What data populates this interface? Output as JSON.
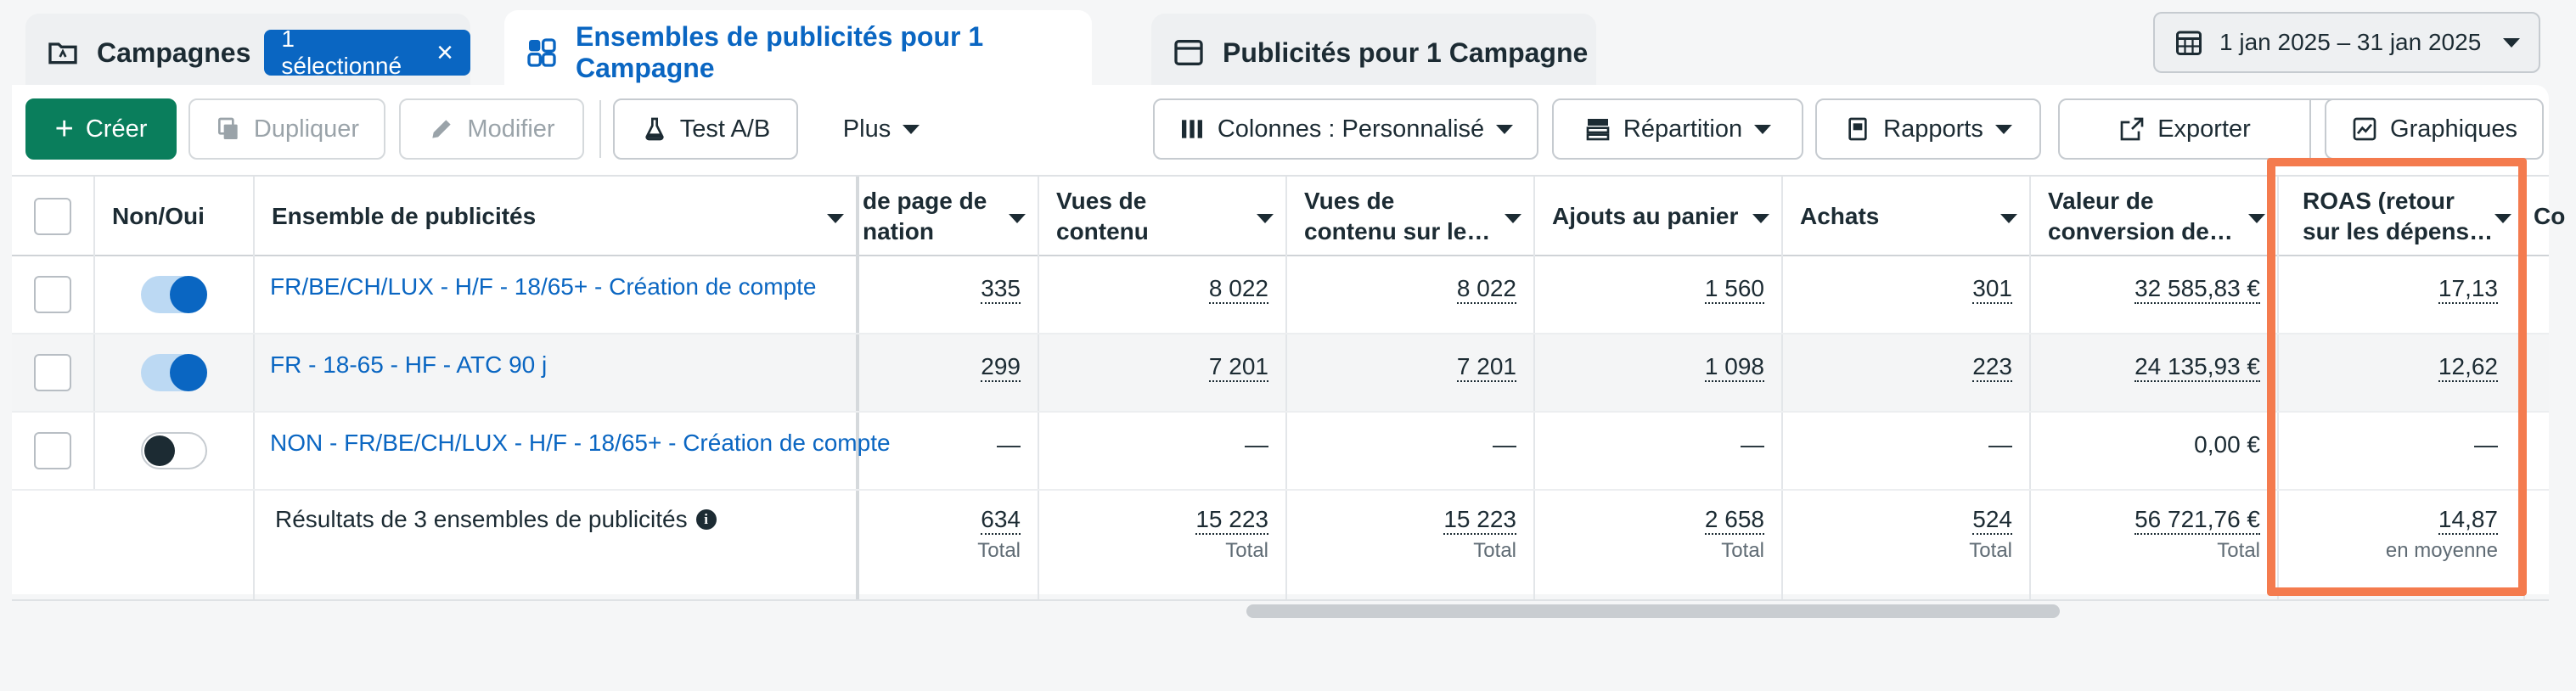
{
  "tabs": {
    "campaigns": {
      "label": "Campagnes",
      "badge": "1 sélectionné",
      "icon": "folder-icon"
    },
    "adsets": {
      "label": "Ensembles de publicités pour 1 Campagne",
      "icon": "grid-icon"
    },
    "ads": {
      "label": "Publicités pour 1 Campagne",
      "icon": "window-icon"
    }
  },
  "date_range": "1 jan 2025 – 31 jan 2025",
  "toolbar": {
    "create": "Créer",
    "duplicate": "Dupliquer",
    "edit": "Modifier",
    "ab_test": "Test A/B",
    "more": "Plus",
    "columns": "Colonnes : Personnalisé",
    "breakdown": "Répartition",
    "reports": "Rapports",
    "export": "Exporter",
    "charts": "Graphiques"
  },
  "table": {
    "headers": {
      "toggle": "Non/Oui",
      "name": "Ensemble de publicités",
      "landing": "de page de\nnation",
      "content_views": "Vues de\ncontenu",
      "content_views_site": "Vues de\ncontenu sur le…",
      "add_to_cart": "Ajouts au panier",
      "purchases": "Achats",
      "conv_value": "Valeur de\nconversion de…",
      "roas": "ROAS (retour\nsur les dépens…",
      "next": "Co"
    },
    "rows": [
      {
        "name": "FR/BE/CH/LUX - H/F - 18/65+ - Création de compte",
        "on": true,
        "landing": "335",
        "content_views": "8 022",
        "content_views_site": "8 022",
        "add_to_cart": "1 560",
        "purchases": "301",
        "conv_value": "32 585,83 €",
        "roas": "17,13"
      },
      {
        "name": "FR - 18-65 - HF - ATC 90 j",
        "on": true,
        "landing": "299",
        "content_views": "7 201",
        "content_views_site": "7 201",
        "add_to_cart": "1 098",
        "purchases": "223",
        "conv_value": "24 135,93 €",
        "roas": "12,62"
      },
      {
        "name": "NON - FR/BE/CH/LUX - H/F - 18/65+ - Création de compte",
        "on": false,
        "landing": "—",
        "content_views": "—",
        "content_views_site": "—",
        "add_to_cart": "—",
        "purchases": "—",
        "conv_value": "0,00 €",
        "roas": "—"
      }
    ],
    "totals": {
      "label": "Résultats de 3 ensembles de publicités",
      "landing": "634",
      "content_views": "15 223",
      "content_views_site": "15 223",
      "add_to_cart": "2 658",
      "purchases": "524",
      "conv_value": "56 721,76 €",
      "roas": "14,87",
      "total_word": "Total",
      "avg_word": "en moyenne"
    }
  },
  "colors": {
    "accent": "#0a66c2",
    "create": "#0a7e5c",
    "highlight": "#f47b4e"
  }
}
